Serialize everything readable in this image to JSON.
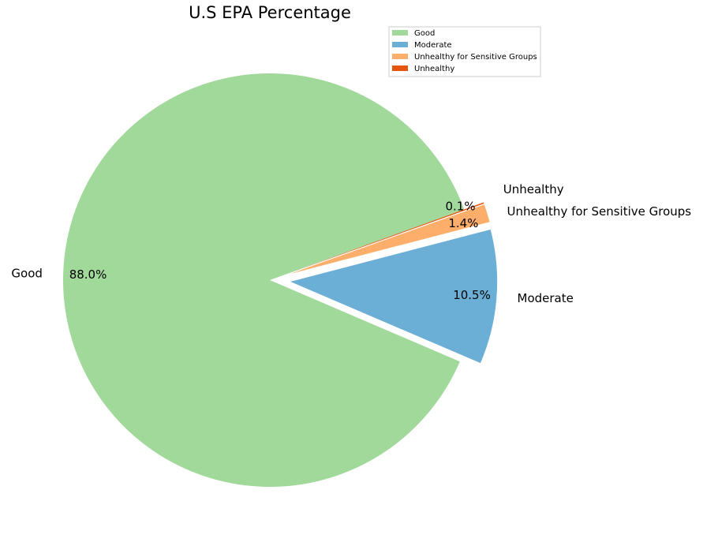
{
  "chart_data": {
    "type": "pie",
    "title": "U.S EPA Percentage",
    "categories": [
      "Good",
      "Moderate",
      "Unhealthy for Sensitive Groups",
      "Unhealthy"
    ],
    "values": [
      88.0,
      10.5,
      1.4,
      0.1
    ],
    "pct_labels": [
      "88.0%",
      "10.5%",
      "1.4%",
      "0.1%"
    ],
    "colors": [
      "#a1d99b",
      "#6baed6",
      "#fdae6b",
      "#e6550d"
    ],
    "explode": [
      0,
      0.1,
      0.1,
      0.1
    ],
    "legend_position": "top-right"
  }
}
